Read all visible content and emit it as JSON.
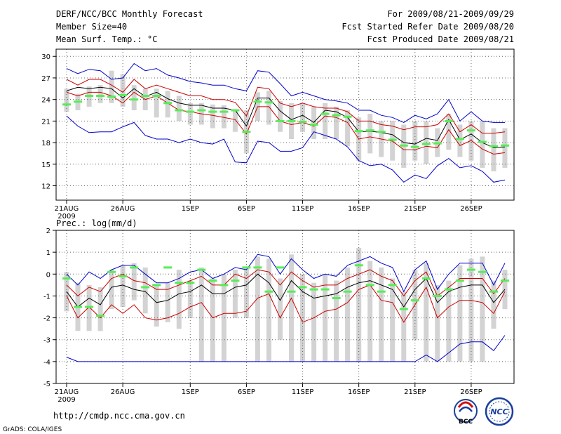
{
  "header": {
    "title": "DERF/NCC/BCC Monthly Forecast",
    "member_size": "Member Size=40",
    "variable": "Mean Surf. Temp.: °C",
    "period": "For 2009/08/21-2009/09/29",
    "fcst_started": "Fcst Started Refer Date 2009/08/20",
    "fcst_produced": "Fcst Produced Date 2009/08/21"
  },
  "footer": {
    "url": "http://cmdp.ncc.cma.gov.cn",
    "grads": "GrADS: COLA/IGES",
    "bcc_logo_text": "BCC",
    "ncc_logo_text": "NCC"
  },
  "colors": {
    "ensemble_mean": "#000000",
    "bounds_outer": "#0000cc",
    "bounds_inner": "#cc0000",
    "box": "#d3d3d3",
    "marker": "#55ee55",
    "grid": "#666666"
  },
  "chart_data": [
    {
      "type": "box-ensemble",
      "title": "Mean Surf. Temp.: °C",
      "xlabel": "",
      "ylabel": "°C",
      "x_start": "2009-08-21",
      "days": 40,
      "xticks": [
        "21AUG",
        "26AUG",
        "1SEP",
        "6SEP",
        "11SEP",
        "16SEP",
        "21SEP",
        "26SEP"
      ],
      "xtick_days": [
        0,
        5,
        11,
        16,
        21,
        26,
        31,
        36
      ],
      "year_label": "2009",
      "ylim": [
        10,
        31
      ],
      "yticks": [
        12,
        15,
        18,
        21,
        24,
        27,
        30
      ],
      "grid": true,
      "series": [
        {
          "name": "max",
          "values": [
            28.3,
            27.6,
            28.2,
            28.0,
            26.8,
            27.0,
            29.0,
            28.0,
            28.3,
            27.4,
            27.0,
            26.5,
            26.3,
            26.0,
            26.0,
            25.5,
            25.2,
            28.0,
            27.8,
            26.2,
            24.5,
            25.0,
            24.5,
            24.0,
            23.8,
            23.5,
            22.5,
            22.5,
            21.8,
            21.5,
            20.8,
            21.8,
            21.3,
            22.0,
            24.0,
            21.0,
            22.3,
            21.0,
            20.8,
            20.8
          ]
        },
        {
          "name": "upper",
          "values": [
            26.8,
            26.0,
            26.8,
            26.8,
            26.0,
            25.0,
            26.8,
            25.5,
            26.0,
            25.5,
            25.0,
            24.5,
            24.5,
            24.0,
            24.0,
            23.6,
            21.7,
            25.7,
            25.5,
            23.5,
            23.0,
            23.5,
            23.0,
            22.8,
            22.8,
            22.3,
            21.0,
            21.0,
            20.5,
            20.3,
            19.8,
            20.2,
            20.2,
            20.5,
            22.0,
            19.5,
            20.5,
            19.3,
            19.3,
            19.5
          ]
        },
        {
          "name": "mean",
          "values": [
            25.2,
            25.7,
            25.5,
            25.7,
            25.5,
            24.2,
            25.5,
            24.4,
            25.0,
            24.1,
            23.5,
            23.2,
            23.2,
            22.8,
            22.8,
            22.5,
            20.3,
            24.2,
            24.2,
            22.4,
            21.2,
            21.8,
            20.8,
            22.5,
            22.3,
            21.5,
            19.5,
            19.6,
            19.4,
            19.1,
            18.0,
            17.8,
            18.6,
            18.3,
            21.2,
            18.4,
            19.2,
            18.0,
            17.3,
            17.4
          ]
        },
        {
          "name": "lower",
          "values": [
            25.0,
            24.5,
            25.0,
            25.0,
            24.5,
            23.5,
            25.0,
            24.0,
            24.5,
            23.5,
            22.5,
            22.3,
            22.0,
            21.8,
            21.5,
            21.2,
            19.2,
            23.0,
            23.0,
            21.0,
            20.5,
            20.8,
            20.3,
            21.7,
            21.5,
            20.8,
            18.5,
            18.8,
            18.5,
            18.2,
            17.0,
            17.0,
            17.5,
            17.3,
            19.8,
            17.6,
            18.3,
            17.1,
            16.4,
            16.6
          ]
        },
        {
          "name": "min",
          "values": [
            21.7,
            20.3,
            19.4,
            19.5,
            19.5,
            20.2,
            20.8,
            19.0,
            18.5,
            18.5,
            18.0,
            18.5,
            18.0,
            17.8,
            18.5,
            15.3,
            15.2,
            18.2,
            18.0,
            16.8,
            16.8,
            17.3,
            19.5,
            19.0,
            18.5,
            17.4,
            15.5,
            14.8,
            15.0,
            14.2,
            12.5,
            13.5,
            13.0,
            14.8,
            15.8,
            14.5,
            14.8,
            14.0,
            12.5,
            12.8
          ]
        },
        {
          "name": "box_top",
          "values": [
            25.5,
            24.8,
            25.8,
            26.0,
            28.0,
            27.5,
            26.0,
            25.5,
            25.5,
            25.2,
            24.5,
            23.5,
            23.5,
            23.3,
            23.2,
            22.5,
            22.5,
            25.0,
            25.2,
            23.8,
            23.5,
            23.5,
            23.0,
            23.5,
            23.0,
            22.5,
            21.5,
            22.0,
            21.0,
            21.0,
            20.5,
            21.0,
            21.0,
            20.0,
            22.0,
            20.5,
            21.0,
            21.0,
            20.0,
            20.0
          ]
        },
        {
          "name": "box_bottom",
          "values": [
            22.3,
            22.5,
            23.0,
            23.5,
            23.5,
            23.0,
            22.5,
            22.5,
            21.5,
            21.5,
            21.0,
            20.5,
            20.5,
            20.0,
            20.0,
            19.5,
            16.5,
            21.0,
            20.5,
            19.5,
            18.5,
            19.5,
            18.5,
            18.5,
            18.5,
            17.5,
            15.5,
            16.5,
            16.0,
            15.5,
            14.5,
            15.5,
            15.0,
            16.0,
            17.0,
            16.0,
            15.5,
            14.5,
            14.0,
            14.5
          ]
        },
        {
          "name": "marker",
          "values": [
            23.3,
            23.7,
            24.5,
            24.5,
            24.4,
            24.6,
            24.0,
            24.5,
            24.5,
            23.5,
            22.5,
            22.3,
            22.5,
            22.3,
            22.3,
            22.5,
            19.5,
            23.7,
            23.6,
            21.0,
            21.0,
            20.9,
            20.5,
            22.0,
            21.8,
            21.6,
            19.6,
            19.7,
            19.5,
            18.4,
            17.6,
            17.4,
            17.8,
            17.9,
            21.0,
            18.5,
            19.7,
            18.1,
            17.5,
            17.6
          ]
        }
      ]
    },
    {
      "type": "box-ensemble",
      "title": "Prec.: log(mm/d)",
      "xlabel": "",
      "ylabel": "log(mm/d)",
      "x_start": "2009-08-21",
      "days": 40,
      "xticks": [
        "21AUG",
        "26AUG",
        "1SEP",
        "6SEP",
        "11SEP",
        "16SEP",
        "21SEP",
        "26SEP"
      ],
      "xtick_days": [
        0,
        5,
        11,
        16,
        21,
        26,
        31,
        36
      ],
      "year_label": "2009",
      "ylim": [
        -5,
        2
      ],
      "yticks": [
        -5,
        -4,
        -3,
        -2,
        -1,
        0,
        1,
        2
      ],
      "grid": true,
      "series": [
        {
          "name": "max",
          "values": [
            0.0,
            -0.5,
            0.1,
            -0.2,
            0.2,
            0.4,
            0.4,
            0.0,
            -0.4,
            -0.4,
            -0.2,
            0.1,
            0.2,
            -0.2,
            0.0,
            0.3,
            0.2,
            0.9,
            0.8,
            0.0,
            0.7,
            0.2,
            -0.2,
            0.0,
            -0.1,
            0.4,
            0.6,
            0.8,
            0.5,
            0.3,
            -0.8,
            0.2,
            0.6,
            -0.7,
            0.0,
            0.5,
            0.5,
            0.5,
            -0.5,
            0.5
          ]
        },
        {
          "name": "upper",
          "values": [
            -0.5,
            -1.0,
            -0.6,
            -0.8,
            -0.2,
            0.0,
            -0.3,
            -0.4,
            -0.7,
            -0.7,
            -0.5,
            -0.3,
            -0.1,
            -0.5,
            -0.5,
            0.0,
            -0.2,
            0.2,
            0.1,
            -0.5,
            0.1,
            -0.3,
            -0.6,
            -0.5,
            -0.5,
            -0.2,
            0.0,
            0.2,
            -0.1,
            -0.3,
            -1.0,
            -0.3,
            0.1,
            -1.0,
            -0.6,
            -0.2,
            -0.2,
            -0.2,
            -0.9,
            -0.2
          ]
        },
        {
          "name": "mean",
          "values": [
            -0.8,
            -1.5,
            -1.1,
            -1.4,
            -0.6,
            -0.5,
            -0.7,
            -0.8,
            -1.3,
            -1.2,
            -0.9,
            -0.8,
            -0.5,
            -0.9,
            -0.9,
            -0.6,
            -0.5,
            0.0,
            -0.4,
            -1.2,
            -0.3,
            -0.8,
            -1.1,
            -1.0,
            -0.9,
            -0.6,
            -0.4,
            -0.3,
            -0.5,
            -0.7,
            -1.5,
            -0.7,
            -0.2,
            -1.3,
            -0.8,
            -0.6,
            -0.5,
            -0.5,
            -1.3,
            -0.7
          ]
        },
        {
          "name": "lower",
          "values": [
            -1.0,
            -2.0,
            -1.5,
            -2.0,
            -1.4,
            -1.8,
            -1.4,
            -2.0,
            -2.1,
            -2.0,
            -1.8,
            -1.5,
            -1.3,
            -2.0,
            -1.8,
            -1.8,
            -1.7,
            -1.1,
            -0.9,
            -2.0,
            -1.1,
            -2.2,
            -2.0,
            -1.7,
            -1.6,
            -1.3,
            -0.7,
            -0.5,
            -1.2,
            -1.3,
            -2.2,
            -1.4,
            -0.6,
            -2.0,
            -1.5,
            -1.2,
            -1.2,
            -1.3,
            -1.8,
            -0.8
          ]
        },
        {
          "name": "min",
          "values": [
            -3.8,
            -4.0,
            -4.0,
            -4.0,
            -4.0,
            -4.0,
            -4.0,
            -4.0,
            -4.0,
            -4.0,
            -4.0,
            -4.0,
            -4.0,
            -4.0,
            -4.0,
            -4.0,
            -4.0,
            -4.0,
            -4.0,
            -4.0,
            -4.0,
            -4.0,
            -4.0,
            -4.0,
            -4.0,
            -4.0,
            -4.0,
            -4.0,
            -4.0,
            -4.0,
            -4.0,
            -4.0,
            -3.7,
            -4.0,
            -3.6,
            -3.2,
            -3.1,
            -3.1,
            -3.5,
            -2.8
          ]
        },
        {
          "name": "box_top",
          "values": [
            0.1,
            -0.4,
            -0.5,
            -0.6,
            0.2,
            0.4,
            0.5,
            0.3,
            -0.5,
            -0.4,
            0.2,
            -0.3,
            0.3,
            -0.2,
            0.0,
            0.2,
            0.3,
            0.8,
            0.7,
            -0.2,
            0.9,
            0.0,
            -0.4,
            0.0,
            -0.3,
            0.3,
            1.2,
            0.6,
            0.3,
            -0.2,
            -0.8,
            0.2,
            0.5,
            -0.5,
            -0.3,
            0.4,
            0.7,
            0.8,
            -0.3,
            0.2
          ]
        },
        {
          "name": "box_bottom",
          "values": [
            -1.7,
            -2.6,
            -2.6,
            -2.6,
            -1.6,
            -1.5,
            -1.2,
            -1.8,
            -2.4,
            -2.2,
            -2.5,
            -2.0,
            -4.0,
            -4.0,
            -4.0,
            -2.0,
            -2.0,
            -4.0,
            -4.0,
            -3.0,
            -4.0,
            -4.0,
            -4.0,
            -4.0,
            -4.0,
            -4.0,
            -4.0,
            -4.0,
            -4.0,
            -4.0,
            -4.0,
            -3.0,
            -4.0,
            -4.0,
            -4.0,
            -4.0,
            -4.0,
            -4.0,
            -2.5,
            -1.6
          ]
        },
        {
          "name": "marker",
          "values": [
            -0.2,
            -1.5,
            -1.5,
            -1.9,
            0.1,
            -0.1,
            0.3,
            -0.6,
            -0.5,
            0.3,
            -0.4,
            -0.4,
            0.2,
            -0.3,
            -0.5,
            -0.3,
            0.3,
            0.3,
            -0.8,
            0.3,
            -0.8,
            -0.6,
            -0.7,
            -0.7,
            -1.1,
            -0.8,
            0.4,
            -0.5,
            -0.8,
            -0.5,
            -1.6,
            -1.2,
            -0.2,
            -1.0,
            -0.7,
            -0.3,
            0.2,
            0.1,
            -0.8,
            -0.3
          ]
        }
      ]
    }
  ]
}
